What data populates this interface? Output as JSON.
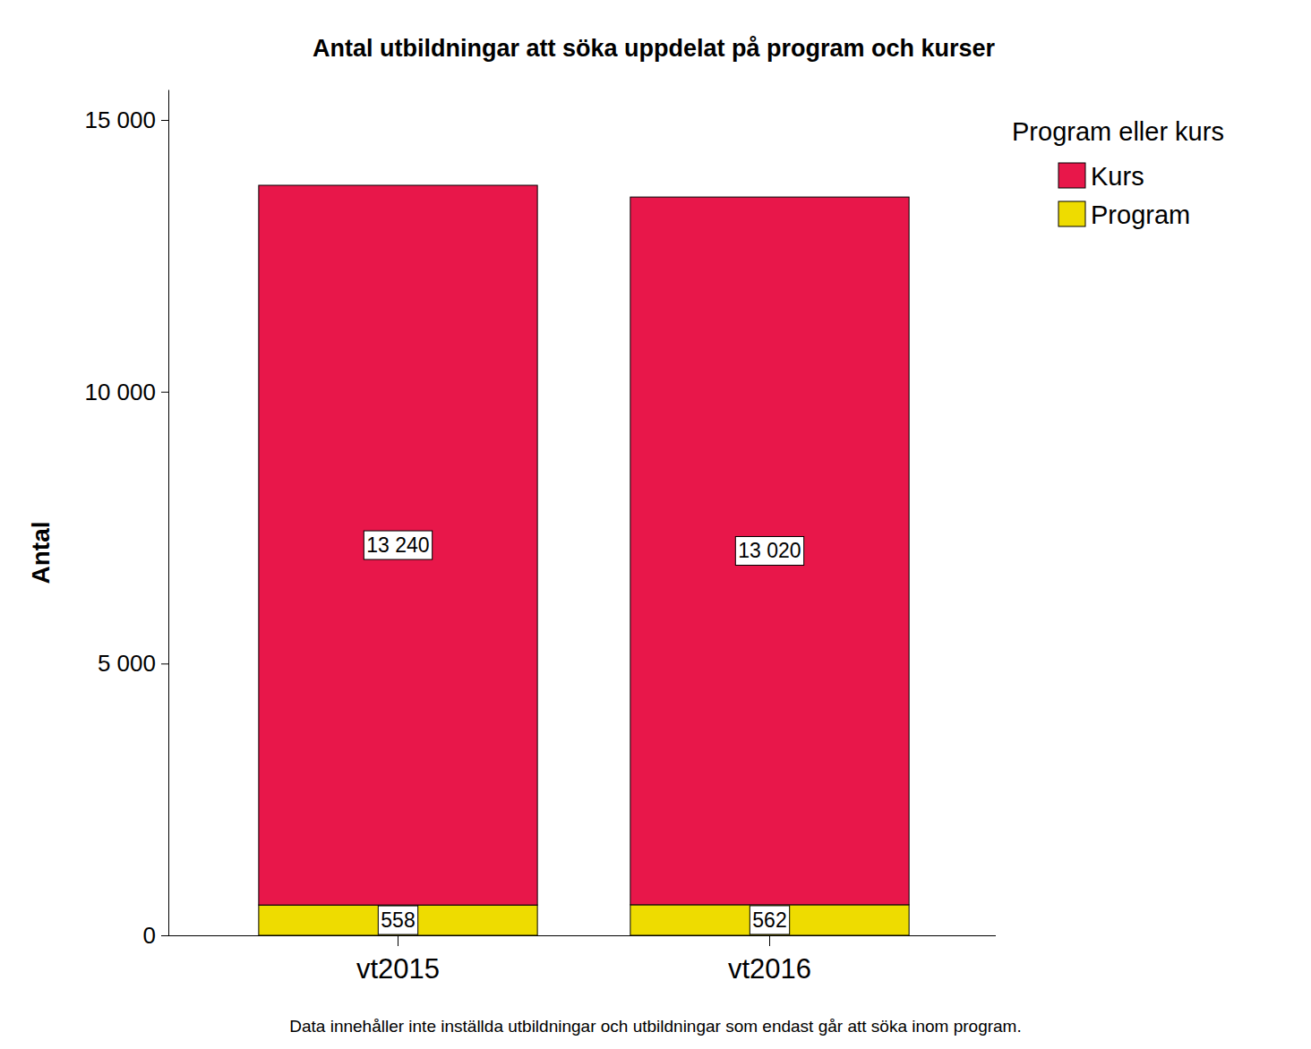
{
  "chart_data": {
    "type": "bar",
    "title": "Antal utbildningar att söka uppdelat på program och kurser",
    "y_label": "Antal",
    "legend_title": "Program eller kurs",
    "annotations": [
      "Data innehåller inte inställda utbildningar och utbildningar som endast går att söka inom program."
    ],
    "categories": [
      "vt2015",
      "vt2016"
    ],
    "series": [
      {
        "name": "Program",
        "color": "#eedc00",
        "values": [
          558,
          562
        ],
        "value_labels": [
          "558",
          "562"
        ]
      },
      {
        "name": "Kurs",
        "color": "#e8174a",
        "values": [
          13240,
          13020
        ],
        "value_labels": [
          "13 240",
          "13 020"
        ]
      }
    ],
    "stacked": true,
    "data_labels": true,
    "legend": "right",
    "grid": false,
    "ylim": [
      0,
      15560
    ],
    "yticks": [
      {
        "value": 0,
        "label": "0"
      },
      {
        "value": 5000,
        "label": "5 000"
      },
      {
        "value": 10000,
        "label": "10 000"
      },
      {
        "value": 15000,
        "label": "15 000"
      }
    ]
  }
}
